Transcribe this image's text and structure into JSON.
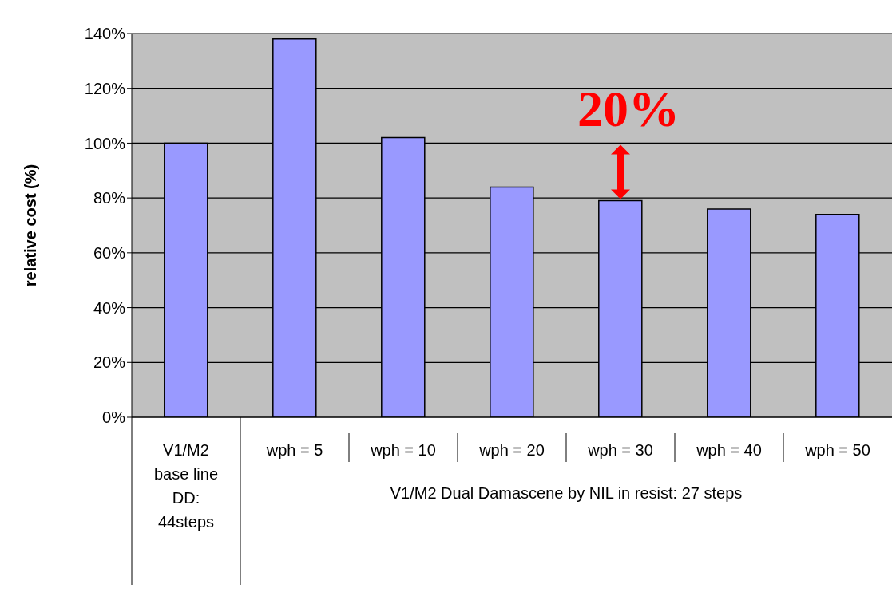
{
  "chart_data": {
    "type": "bar",
    "ylabel": "relative cost (%)",
    "categories": [
      "V1/M2 base line DD: 44steps",
      "wph = 5",
      "wph = 10",
      "wph = 20",
      "wph = 30",
      "wph = 40",
      "wph = 50"
    ],
    "values": [
      100,
      138,
      102,
      84,
      79,
      76,
      74
    ],
    "color": "#9999ff",
    "ylim": [
      0,
      140
    ],
    "yticks": [
      {
        "value": 0,
        "label": "0%"
      },
      {
        "value": 20,
        "label": "20%"
      },
      {
        "value": 40,
        "label": "40%"
      },
      {
        "value": 60,
        "label": "60%"
      },
      {
        "value": 80,
        "label": "80%"
      },
      {
        "value": 100,
        "label": "100%"
      },
      {
        "value": 120,
        "label": "120%"
      },
      {
        "value": 140,
        "label": "140%"
      }
    ],
    "grid": "y",
    "annotations": [
      {
        "text": "20%",
        "x": "wph = 30",
        "y": 79
      },
      "V1/M2 Dual Damascene by NIL in resist: 27 steps"
    ]
  }
}
